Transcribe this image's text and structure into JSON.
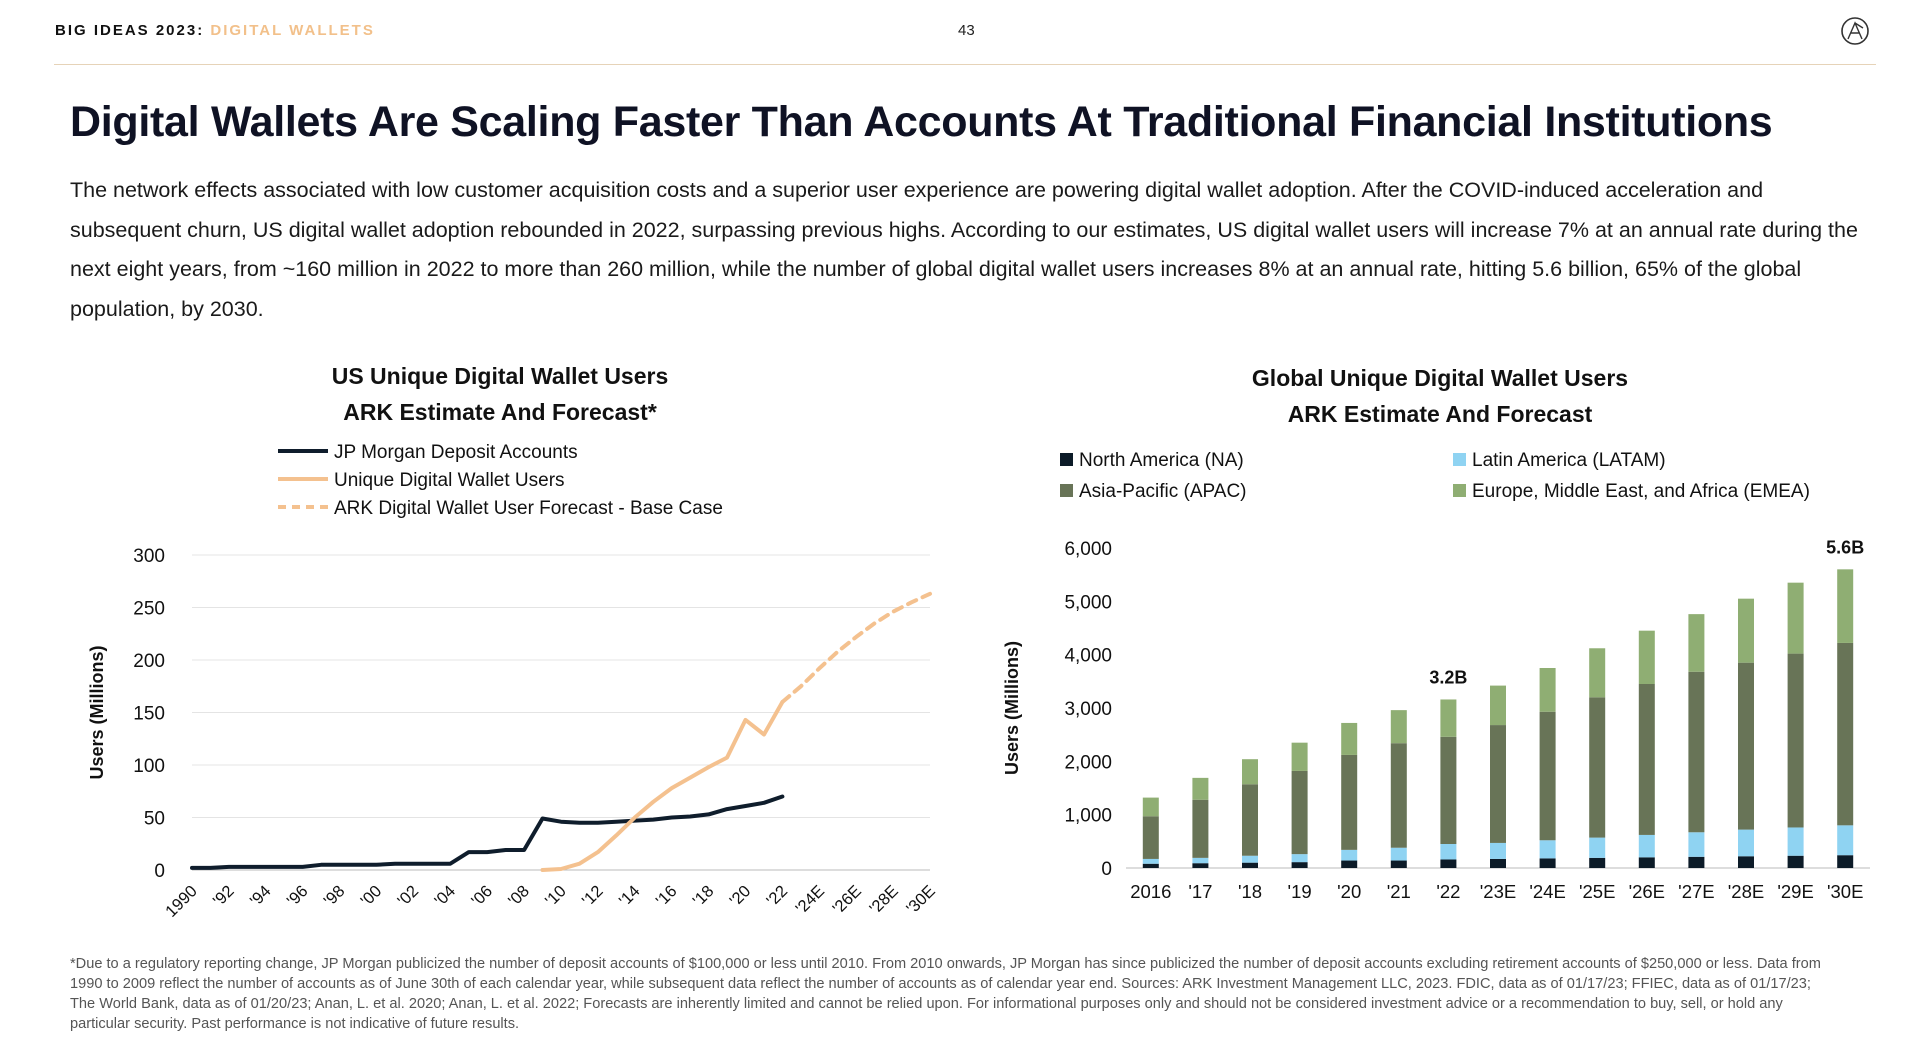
{
  "header": {
    "series_label": "BIG IDEAS 2023:",
    "topic_label": "DIGITAL WALLETS",
    "page_number": "43",
    "logo_icon": "ark-logo-icon"
  },
  "title": "Digital Wallets Are Scaling Faster Than Accounts At Traditional Financial Institutions",
  "intro": "The network effects associated with low customer acquisition costs and a superior user experience are powering digital wallet adoption. After the COVID-induced acceleration and subsequent churn, US digital wallet adoption rebounded in 2022, surpassing previous highs. According to our estimates, US digital wallet users will increase 7% at an annual rate during the next eight years, from ~160 million in 2022 to more than 260 million, while the number of global digital wallet users increases 8% at an annual rate, hitting 5.6 billion, 65% of the global population, by 2030.",
  "chart_data": [
    {
      "type": "line",
      "title": "US Unique Digital Wallet Users",
      "subtitle": "ARK Estimate And Forecast*",
      "ylabel": "Users (Millions)",
      "xlabel": "",
      "ylim": [
        0,
        300
      ],
      "yticks": [
        "0",
        "50",
        "100",
        "150",
        "200",
        "250",
        "300"
      ],
      "xlim": [
        1990,
        2030
      ],
      "xticks": [
        "1990",
        "'92",
        "'94",
        "'96",
        "'98",
        "'00",
        "'02",
        "'04",
        "'06",
        "'08",
        "'10",
        "'12",
        "'14",
        "'16",
        "'18",
        "'20",
        "'22",
        "'24E",
        "'26E",
        "'28E",
        "'30E"
      ],
      "legend": [
        "JP Morgan Deposit Accounts",
        "Unique Digital Wallet Users",
        "ARK Digital Wallet User Forecast - Base Case"
      ],
      "series": [
        {
          "name": "JP Morgan Deposit Accounts",
          "color": "#0f1d2c",
          "x": [
            1990,
            1991,
            1992,
            1993,
            1994,
            1995,
            1996,
            1997,
            1998,
            1999,
            2000,
            2001,
            2002,
            2003,
            2004,
            2005,
            2006,
            2007,
            2008,
            2009,
            2010,
            2011,
            2012,
            2013,
            2014,
            2015,
            2016,
            2017,
            2018,
            2019,
            2020,
            2021,
            2022
          ],
          "y": [
            2,
            2,
            3,
            3,
            3,
            3,
            3,
            5,
            5,
            5,
            5,
            6,
            6,
            6,
            6,
            17,
            17,
            19,
            19,
            49,
            46,
            45,
            45,
            46,
            47,
            48,
            50,
            51,
            53,
            58,
            61,
            64,
            70
          ]
        },
        {
          "name": "Unique Digital Wallet Users",
          "color": "#f4c18f",
          "x": [
            2009,
            2010,
            2011,
            2012,
            2013,
            2014,
            2015,
            2016,
            2017,
            2018,
            2019,
            2020,
            2021,
            2022
          ],
          "y": [
            0,
            1,
            6,
            17,
            33,
            50,
            65,
            78,
            88,
            98,
            107,
            143,
            129,
            160
          ]
        },
        {
          "name": "ARK Digital Wallet User Forecast - Base Case",
          "color": "#f4c18f",
          "dashed": true,
          "x": [
            2022,
            2023,
            2024,
            2025,
            2026,
            2027,
            2028,
            2029,
            2030
          ],
          "y": [
            160,
            175,
            192,
            208,
            222,
            235,
            246,
            255,
            263
          ]
        }
      ]
    },
    {
      "type": "bar",
      "stacked": true,
      "title": "Global Unique Digital Wallet Users",
      "subtitle": "ARK Estimate And Forecast",
      "ylabel": "Users (Millions)",
      "xlabel": "",
      "ylim": [
        0,
        6000
      ],
      "yticks": [
        "0",
        "1,000",
        "2,000",
        "3,000",
        "4,000",
        "5,000",
        "6,000"
      ],
      "categories": [
        "2016",
        "'17",
        "'18",
        "'19",
        "'20",
        "'21",
        "'22",
        "'23E",
        "'24E",
        "'25E",
        "'26E",
        "'27E",
        "'28E",
        "'29E",
        "'30E"
      ],
      "series": [
        {
          "name": "North America (NA)",
          "color": "#0c1b28",
          "values": [
            80,
            90,
            100,
            110,
            140,
            140,
            160,
            170,
            180,
            190,
            200,
            210,
            220,
            230,
            240
          ]
        },
        {
          "name": "Latin America (LATAM)",
          "color": "#8fd3f2",
          "values": [
            90,
            100,
            130,
            150,
            200,
            240,
            290,
            300,
            340,
            380,
            420,
            460,
            500,
            530,
            560
          ]
        },
        {
          "name": "Asia-Pacific (APAC)",
          "color": "#687457",
          "values": [
            800,
            1090,
            1340,
            1560,
            1780,
            1960,
            2010,
            2210,
            2410,
            2630,
            2830,
            3010,
            3130,
            3260,
            3420
          ]
        },
        {
          "name": "Europe, Middle East, and Africa (EMEA)",
          "color": "#8fae73",
          "values": [
            350,
            410,
            470,
            530,
            600,
            620,
            700,
            740,
            820,
            920,
            1000,
            1080,
            1200,
            1330,
            1380
          ]
        }
      ],
      "annotations": [
        {
          "category": "'22",
          "text": "3.2B"
        },
        {
          "category": "'30E",
          "text": "5.6B"
        }
      ]
    }
  ],
  "footnote": "*Due to a regulatory reporting change, JP Morgan publicized the number of deposit accounts of $100,000 or less until 2010. From 2010 onwards, JP Morgan has since publicized the number of deposit accounts excluding retirement accounts of $250,000 or less. Data from 1990 to 2009 reflect the number of accounts as of June 30th of each calendar year, while subsequent data reflect the number of accounts as of calendar year end. Sources: ARK Investment Management LLC, 2023. FDIC, data as of 01/17/23; FFIEC, data as of 01/17/23; The World Bank, data as of 01/20/23; Anan, L. et al. 2020; Anan, L. et al. 2022; Forecasts are inherently limited and cannot be relied upon. For informational purposes only and should not be considered investment advice or a recommendation to buy, sell, or hold any particular security. Past performance is not indicative of future results."
}
